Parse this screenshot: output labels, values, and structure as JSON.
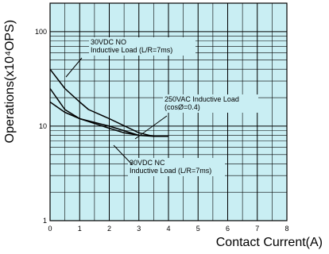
{
  "chart_data": {
    "type": "line",
    "title": "",
    "xlabel": "Contact Current(A)",
    "ylabel": "Operations(x10⁴OPS)",
    "xlim": [
      0,
      8
    ],
    "ylim": [
      1,
      200
    ],
    "y_scale": "log",
    "grid": true,
    "background_color": "#c9eef3",
    "grid_color": "#000000",
    "x_ticks": [
      "0",
      "1",
      "2",
      "3",
      "4",
      "5",
      "6",
      "7",
      "8"
    ],
    "y_ticks": [
      {
        "value": 1,
        "label": "1"
      },
      {
        "value": 10,
        "label": "10"
      },
      {
        "value": 100,
        "label": "100"
      }
    ],
    "series": [
      {
        "name": "30VDC NO Inductive Load (L/R=7ms)",
        "x": [
          0,
          0.5,
          1.0,
          1.3,
          2.0,
          3.0,
          3.5
        ],
        "y": [
          40,
          25,
          18,
          15,
          12,
          8.5,
          7.8
        ]
      },
      {
        "name": "250VAC Inductive Load (cosØ=0.4)",
        "x": [
          0,
          0.5,
          1.0,
          2.0,
          3.0,
          3.5,
          4.0
        ],
        "y": [
          25,
          15,
          12,
          10,
          8,
          7.8,
          7.8
        ]
      },
      {
        "name": "30VDC NC Inductive Load (L/R=7ms)",
        "x": [
          0,
          0.5,
          1.0,
          2.0,
          2.5,
          3.0
        ],
        "y": [
          18,
          14,
          12,
          9.5,
          8.5,
          8.0
        ]
      }
    ],
    "annotations": [
      {
        "lines": [
          "30VDC NO",
          "Inductive Load (L/R=7ms)"
        ]
      },
      {
        "lines": [
          "250VAC Inductive Load",
          "(cosØ=0.4)"
        ]
      },
      {
        "lines": [
          "30VDC NC",
          "Inductive Load (L/R=7ms)"
        ]
      }
    ]
  }
}
